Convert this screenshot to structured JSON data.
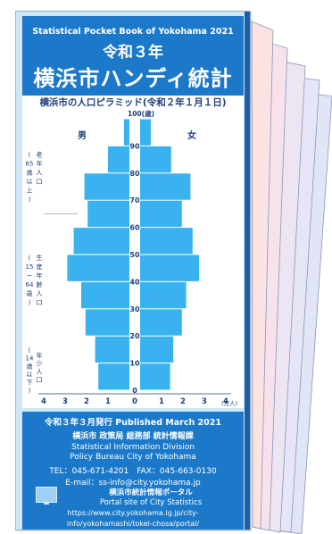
{
  "header": {
    "en_title": "Statistical Pocket Book of Yokohama 2021",
    "year_title": "令和３年",
    "main_title": "横浜市ハンディ統計"
  },
  "pyramid": {
    "subtitle": "横浜市の人口ピラミッド(令和２年１月１日)",
    "male_label": "男",
    "female_label": "女",
    "age_unit": "100(歳)",
    "age_ticks": [
      "90",
      "80",
      "70",
      "60",
      "50",
      "40",
      "30",
      "20",
      "10",
      "0"
    ],
    "x_ticks": [
      "4",
      "3",
      "2",
      "1",
      "0",
      "1",
      "2",
      "3",
      "4"
    ],
    "x_unit": "(万人)",
    "group_elderly_chars": [
      "老",
      "年",
      "人",
      "口"
    ],
    "group_elderly_range": [
      "(",
      "65",
      "歳",
      "以",
      "上",
      ")"
    ],
    "group_working_chars": [
      "生",
      "産",
      "年",
      "齢",
      "人",
      "口"
    ],
    "group_working_range": [
      "(",
      "15",
      "~",
      "64",
      "歳",
      ")"
    ],
    "group_young_chars": [
      "年",
      "少",
      "人",
      "口"
    ],
    "group_young_range": [
      "(",
      "14",
      "歳",
      "以",
      "下",
      ")"
    ],
    "bar_color": "#3ab2ef",
    "chart_data": {
      "type": "bar",
      "orientation": "horizontal-mirrored",
      "age_bands": [
        "0-9",
        "10-19",
        "20-29",
        "30-39",
        "40-49",
        "50-59",
        "60-69",
        "70-79",
        "80-89",
        "90-99"
      ],
      "series": [
        {
          "name": "男",
          "values": [
            1.45,
            1.6,
            2.05,
            2.25,
            2.9,
            2.6,
            1.95,
            2.1,
            1.0,
            0.25
          ]
        },
        {
          "name": "女",
          "values": [
            1.4,
            1.55,
            1.95,
            2.15,
            2.75,
            2.45,
            1.95,
            2.35,
            1.45,
            0.5
          ]
        }
      ],
      "xlabel": "(万人)",
      "ylabel": "100(歳)",
      "xlim": [
        0,
        4
      ],
      "ylim": [
        0,
        100
      ]
    }
  },
  "footer": {
    "published": "令和３年３月発行 Published March 2021",
    "bureau_ja": "横浜市 政策局 総務部 統計情報課",
    "division_en": "Statistical Information Division",
    "bureau_en": "Policy Bureau City of Yokohama",
    "tel_fax": "TEL：045-671-4201　FAX：045-663-0130",
    "email": "E-mail：ss-info@city.yokohama.jp",
    "portal_ja": "横浜市統計情報ポータル",
    "portal_en": "Portal site of City Statistics",
    "url_line1": "https://www.city.yokohama.lg.jp/city-",
    "url_line2": "info/yokohamashi/tokei-chosa/portal/"
  },
  "colors": {
    "header_blue": "#1c79c9",
    "dark_blue": "#1f3f7a",
    "spine": "#1a5fa8",
    "fan_pages": [
      "#fbe3e3",
      "#f7e2ea",
      "#eee5f2",
      "#e6e5f5",
      "#e1e6f6"
    ]
  }
}
